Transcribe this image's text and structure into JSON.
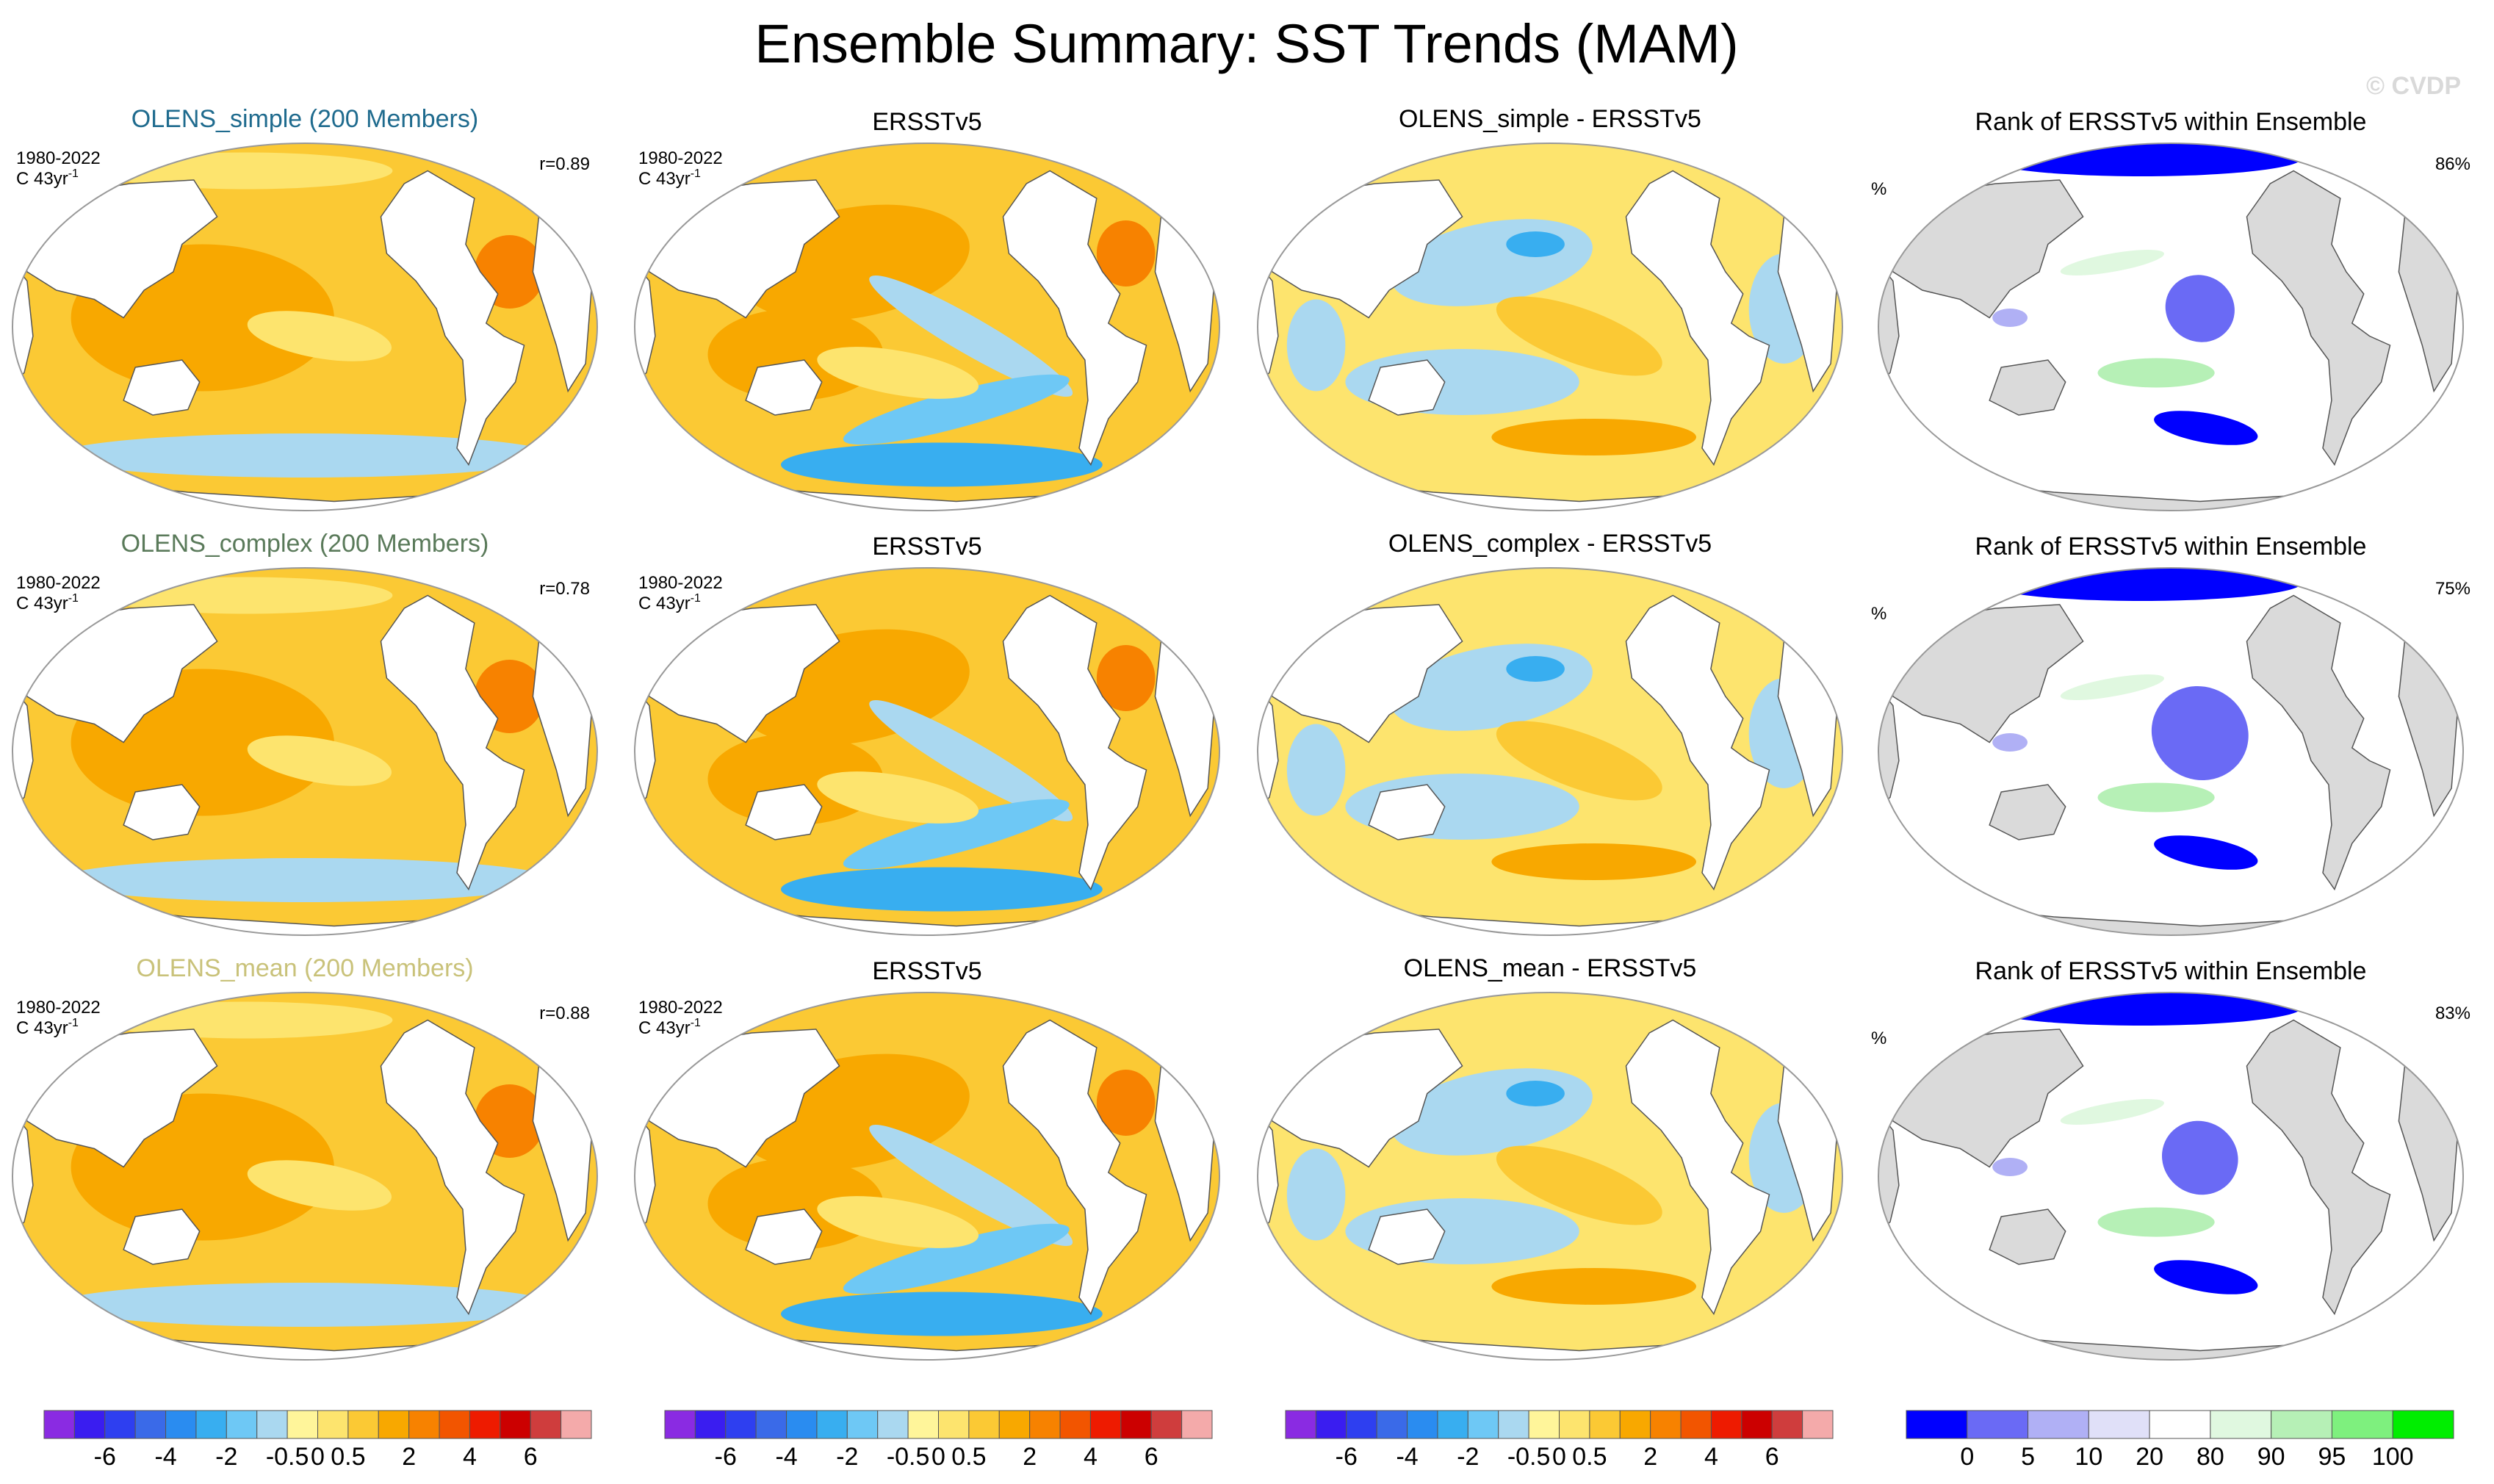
{
  "figure": {
    "title": "Ensemble Summary: SST Trends (MAM)",
    "watermark": "© CVDP"
  },
  "period_label": "1980-2022",
  "units_label": "C 43yr",
  "units_superscript": "-1",
  "percent_unit": "%",
  "colors": {
    "land_gray": "#dadada",
    "ocean_white": "#ffffff",
    "coast": "#555555",
    "title_simple": "#1f6b8e",
    "title_complex": "#5a7a5a",
    "title_mean": "#c9c27a",
    "watermark": "#d9d9d9"
  },
  "rows": [
    {
      "ensemble": {
        "title": "OLENS_simple (200 Members)",
        "r": "r=0.89",
        "title_color_key": "title_simple"
      },
      "obs": {
        "title": "ERSSTv5"
      },
      "diff": {
        "title": "OLENS_simple - ERSSTv5"
      },
      "rank": {
        "title": "Rank of ERSSTv5 within Ensemble",
        "pct": "86%"
      }
    },
    {
      "ensemble": {
        "title": "OLENS_complex (200 Members)",
        "r": "r=0.78",
        "title_color_key": "title_complex"
      },
      "obs": {
        "title": "ERSSTv5"
      },
      "diff": {
        "title": "OLENS_complex - ERSSTv5"
      },
      "rank": {
        "title": "Rank of ERSSTv5 within Ensemble",
        "pct": "75%"
      }
    },
    {
      "ensemble": {
        "title": "OLENS_mean (200 Members)",
        "r": "r=0.88",
        "title_color_key": "title_mean"
      },
      "obs": {
        "title": "ERSSTv5"
      },
      "diff": {
        "title": "OLENS_mean - ERSSTv5"
      },
      "rank": {
        "title": "Rank of ERSSTv5 within Ensemble",
        "pct": "83%"
      }
    }
  ],
  "colorbars": {
    "trend": {
      "colors": [
        "#8a2be2",
        "#3a1df0",
        "#2e3ff0",
        "#3a6ae8",
        "#2a8cf0",
        "#38aef0",
        "#6ec8f5",
        "#aad8f0",
        "#fff59a",
        "#fde46e",
        "#fbc934",
        "#f8a800",
        "#f78200",
        "#f25500",
        "#ee1b00",
        "#cc0000",
        "#cf3d3d",
        "#f4aaaa"
      ],
      "tick_labels": [
        "-6",
        "-4",
        "-2",
        "-0.5",
        "0",
        "0.5",
        "2",
        "4",
        "6"
      ]
    },
    "rank": {
      "colors": [
        "#0000ff",
        "#6a6af5",
        "#b0b0f5",
        "#e0e0f8",
        "#ffffff",
        "#e0f8e0",
        "#b6f0b6",
        "#7ef07e",
        "#00ee00"
      ],
      "tick_labels": [
        "0",
        "5",
        "10",
        "20",
        "80",
        "90",
        "95",
        "100"
      ]
    }
  },
  "chart_data": [
    {
      "type": "heatmap",
      "panel": "OLENS_simple (200 Members)",
      "title": "OLENS_simple (200 Members)",
      "period": "1980-2022",
      "units": "C 43yr-1",
      "pattern_correlation": 0.89,
      "levels": [
        -6,
        -5,
        -4,
        -3,
        -2,
        -1,
        -0.5,
        -0.25,
        0,
        0.25,
        0.5,
        1,
        2,
        3,
        4,
        5,
        6
      ],
      "dominant_range": [
        0.25,
        2
      ],
      "regional_values": {
        "tropical_pacific": 0.5,
        "indian_ocean": 1,
        "north_atlantic": 2,
        "southern_ocean": -0.25,
        "eastern_pacific": 0.25
      }
    },
    {
      "type": "heatmap",
      "panel": "ERSSTv5 (row 1)",
      "title": "ERSSTv5",
      "period": "1980-2022",
      "units": "C 43yr-1",
      "regional_values": {
        "west_pacific": 1,
        "eastern_pacific": -0.5,
        "north_atlantic": 2,
        "southern_ocean": -1,
        "indian_ocean": 1
      }
    },
    {
      "type": "heatmap",
      "panel": "OLENS_simple - ERSSTv5",
      "title": "OLENS_simple - ERSSTv5",
      "regional_values": {
        "eastern_pacific": 1,
        "west_pacific": -0.5,
        "north_pacific": -1,
        "southern_ocean": 1,
        "indian_ocean": -0.25
      }
    },
    {
      "type": "heatmap",
      "panel": "Rank row 1",
      "title": "Rank of ERSSTv5 within Ensemble",
      "percent_within_10_90": 86,
      "units": "%",
      "levels": [
        0,
        5,
        10,
        20,
        80,
        90,
        95,
        100
      ]
    },
    {
      "type": "heatmap",
      "panel": "OLENS_complex (200 Members)",
      "title": "OLENS_complex (200 Members)",
      "period": "1980-2022",
      "units": "C 43yr-1",
      "pattern_correlation": 0.78,
      "regional_values": {
        "tropical_pacific": 1,
        "indian_ocean": 1,
        "north_atlantic": 2,
        "southern_ocean": 0.25,
        "eastern_pacific": 0.5
      }
    },
    {
      "type": "heatmap",
      "panel": "ERSSTv5 (row 2)",
      "title": "ERSSTv5",
      "period": "1980-2022",
      "units": "C 43yr-1",
      "regional_values": {
        "west_pacific": 1,
        "eastern_pacific": -0.5,
        "north_atlantic": 2,
        "southern_ocean": -1,
        "indian_ocean": 1
      }
    },
    {
      "type": "heatmap",
      "panel": "OLENS_complex - ERSSTv5",
      "title": "OLENS_complex - ERSSTv5",
      "regional_values": {
        "eastern_pacific": 1,
        "west_pacific": -0.5,
        "north_pacific": -1,
        "southern_ocean": 0.5,
        "indian_ocean": -0.5
      }
    },
    {
      "type": "heatmap",
      "panel": "Rank row 2",
      "title": "Rank of ERSSTv5 within Ensemble",
      "percent_within_10_90": 75,
      "units": "%",
      "levels": [
        0,
        5,
        10,
        20,
        80,
        90,
        95,
        100
      ]
    },
    {
      "type": "heatmap",
      "panel": "OLENS_mean (200 Members)",
      "title": "OLENS_mean (200 Members)",
      "period": "1980-2022",
      "units": "C 43yr-1",
      "pattern_correlation": 0.88,
      "regional_values": {
        "tropical_pacific": 0.5,
        "indian_ocean": 1,
        "north_atlantic": 2,
        "southern_ocean": -0.25,
        "eastern_pacific": 0.25
      }
    },
    {
      "type": "heatmap",
      "panel": "ERSSTv5 (row 3)",
      "title": "ERSSTv5",
      "period": "1980-2022",
      "units": "C 43yr-1",
      "regional_values": {
        "west_pacific": 1,
        "eastern_pacific": -0.5,
        "north_atlantic": 2,
        "southern_ocean": -1,
        "indian_ocean": 1
      }
    },
    {
      "type": "heatmap",
      "panel": "OLENS_mean - ERSSTv5",
      "title": "OLENS_mean - ERSSTv5",
      "regional_values": {
        "eastern_pacific": 1,
        "west_pacific": -0.5,
        "north_pacific": -1,
        "southern_ocean": 0.5,
        "indian_ocean": -0.25
      }
    },
    {
      "type": "heatmap",
      "panel": "Rank row 3",
      "title": "Rank of ERSSTv5 within Ensemble",
      "percent_within_10_90": 83,
      "units": "%",
      "levels": [
        0,
        5,
        10,
        20,
        80,
        90,
        95,
        100
      ]
    }
  ]
}
